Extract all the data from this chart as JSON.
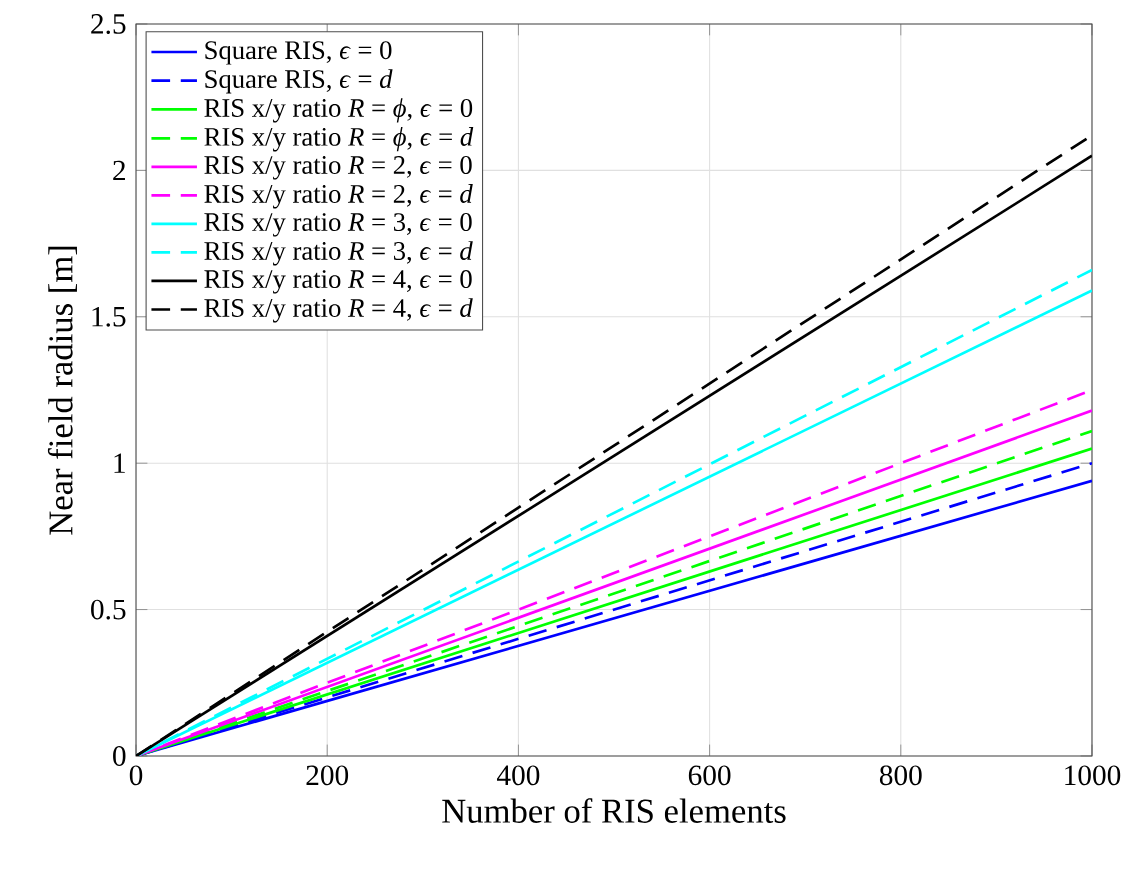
{
  "chart_data": {
    "type": "line",
    "xlabel": "Number of RIS elements",
    "ylabel": "Near field radius [m]",
    "x": [
      0,
      1000
    ],
    "xlim": [
      0,
      1000
    ],
    "xticks": [
      0,
      200,
      400,
      600,
      800,
      1000
    ],
    "ylim": [
      0,
      2.5
    ],
    "yticks": [
      0,
      0.5,
      1,
      1.5,
      2,
      2.5
    ],
    "grid": true,
    "legend": "top left",
    "marker": "none",
    "series": [
      {
        "name": "Square RIS,  *ϵ* = 0",
        "color": "#0000ff",
        "line_style": "solid",
        "values": [
          0,
          0.94
        ]
      },
      {
        "name": "Square RIS,  *ϵ* = *d*",
        "color": "#0000ff",
        "line_style": "dashed",
        "values": [
          0,
          1.0
        ]
      },
      {
        "name": "RIS x/y ratio  *R* = *ϕ*,  *ϵ* = 0",
        "color": "#00ff00",
        "line_style": "solid",
        "values": [
          0,
          1.05
        ]
      },
      {
        "name": "RIS x/y ratio  *R* = *ϕ*,  *ϵ* = *d*",
        "color": "#00ff00",
        "line_style": "dashed",
        "values": [
          0,
          1.11
        ]
      },
      {
        "name": "RIS x/y ratio  *R* = 2,  *ϵ* = 0",
        "color": "#ff00ff",
        "line_style": "solid",
        "values": [
          0,
          1.18
        ]
      },
      {
        "name": "RIS x/y ratio  *R* = 2,  *ϵ* = *d*",
        "color": "#ff00ff",
        "line_style": "dashed",
        "values": [
          0,
          1.25
        ]
      },
      {
        "name": "RIS x/y ratio  *R* = 3,  *ϵ* = 0",
        "color": "#00ffff",
        "line_style": "solid",
        "values": [
          0,
          1.59
        ]
      },
      {
        "name": "RIS x/y ratio  *R* = 3,  *ϵ* = *d*",
        "color": "#00ffff",
        "line_style": "dashed",
        "values": [
          0,
          1.66
        ]
      },
      {
        "name": "RIS x/y ratio  *R* = 4,  *ϵ* = 0",
        "color": "#000000",
        "line_style": "solid",
        "values": [
          0,
          2.05
        ]
      },
      {
        "name": "RIS x/y ratio  *R* = 4,  *ϵ* = *d*",
        "color": "#000000",
        "line_style": "dashed",
        "values": [
          0,
          2.12
        ]
      }
    ]
  }
}
